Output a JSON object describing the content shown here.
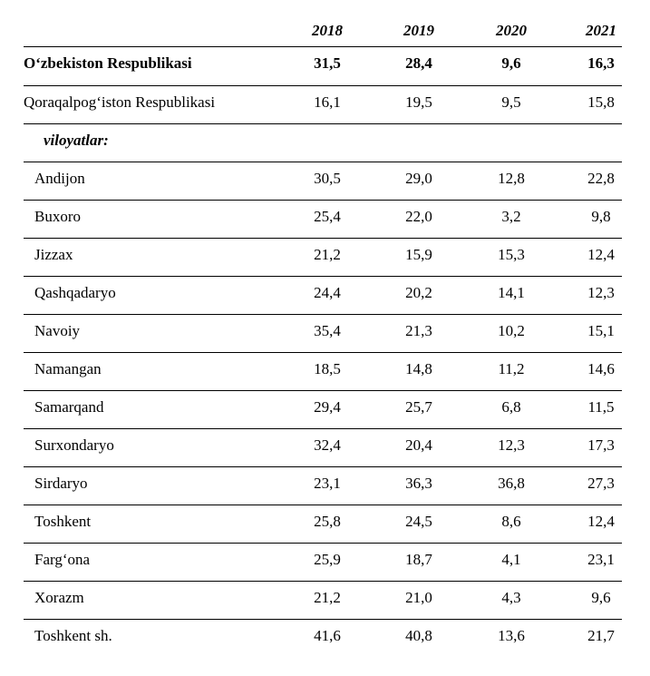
{
  "table": {
    "years": [
      "2018",
      "2019",
      "2020",
      "2021"
    ],
    "total": {
      "name": "O‘zbekiston Respublikasi",
      "values": [
        "31,5",
        "28,4",
        "9,6",
        "16,3"
      ]
    },
    "karakalpakstan": {
      "name": "Qoraqalpog‘iston Respublikasi",
      "values": [
        "16,1",
        "19,5",
        "9,5",
        "15,8"
      ]
    },
    "group_label": "viloyatlar:",
    "regions": [
      {
        "name": "Andijon",
        "values": [
          "30,5",
          "29,0",
          "12,8",
          "22,8"
        ]
      },
      {
        "name": "Buxoro",
        "values": [
          "25,4",
          "22,0",
          "3,2",
          "9,8"
        ]
      },
      {
        "name": "Jizzax",
        "values": [
          "21,2",
          "15,9",
          "15,3",
          "12,4"
        ]
      },
      {
        "name": "Qashqadaryo",
        "values": [
          "24,4",
          "20,2",
          "14,1",
          "12,3"
        ]
      },
      {
        "name": "Navoiy",
        "values": [
          "35,4",
          "21,3",
          "10,2",
          "15,1"
        ]
      },
      {
        "name": "Namangan",
        "values": [
          "18,5",
          "14,8",
          "11,2",
          "14,6"
        ]
      },
      {
        "name": "Samarqand",
        "values": [
          "29,4",
          "25,7",
          "6,8",
          "11,5"
        ]
      },
      {
        "name": "Surxondaryo",
        "values": [
          "32,4",
          "20,4",
          "12,3",
          "17,3"
        ]
      },
      {
        "name": "Sirdaryo",
        "values": [
          "23,1",
          "36,3",
          "36,8",
          "27,3"
        ]
      },
      {
        "name": "Toshkent",
        "values": [
          "25,8",
          "24,5",
          "8,6",
          "12,4"
        ]
      },
      {
        "name": "Farg‘ona",
        "values": [
          "25,9",
          "18,7",
          "4,1",
          "23,1"
        ]
      },
      {
        "name": "Xorazm",
        "values": [
          "21,2",
          "21,0",
          "4,3",
          "9,6"
        ]
      },
      {
        "name": "Toshkent sh.",
        "values": [
          "41,6",
          "40,8",
          "13,6",
          "21,7"
        ]
      }
    ]
  }
}
